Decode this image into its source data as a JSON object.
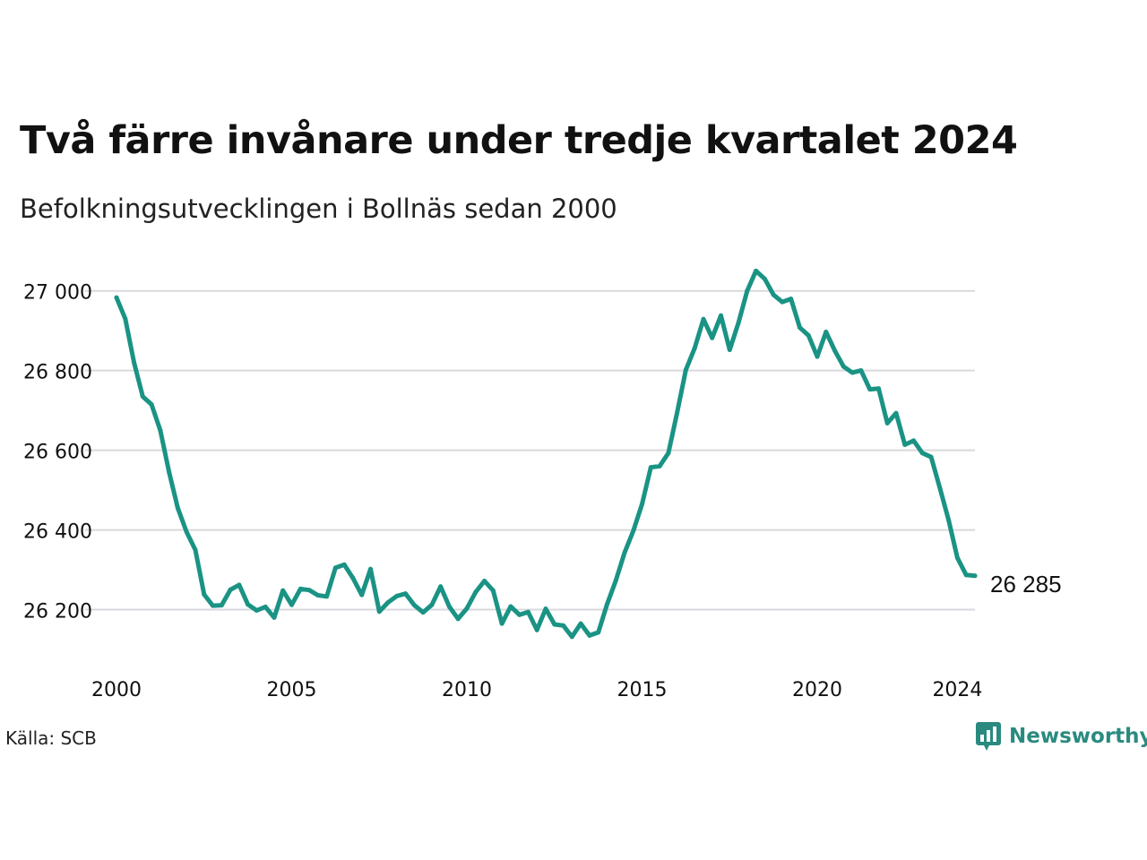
{
  "header": {
    "title": "Två färre invånare under tredje kvartalet 2024",
    "subtitle": "Befolkningsutvecklingen i Bollnäs sedan 2000"
  },
  "footer": {
    "source": "Källa: SCB",
    "brand": "Newsworthy",
    "brand_icon": "newsworthy-logo-icon"
  },
  "colors": {
    "line": "#1a9384",
    "grid": "#d9d9de",
    "brand": "#2a8a7f"
  },
  "chart_data": {
    "type": "line",
    "title": "Två färre invånare under tredje kvartalet 2024",
    "subtitle": "Befolkningsutvecklingen i Bollnäs sedan 2000",
    "xlabel": "",
    "ylabel": "",
    "xlim": [
      2000,
      2024.5
    ],
    "ylim": [
      26100,
      27060
    ],
    "x_ticks": [
      2000,
      2005,
      2010,
      2015,
      2020,
      2024
    ],
    "y_ticks": [
      26200,
      26400,
      26600,
      26800,
      27000
    ],
    "y_tick_labels": [
      "26 200",
      "26 400",
      "26 600",
      "26 800",
      "27 000"
    ],
    "grid": true,
    "last_value_label": "26 285",
    "series": [
      {
        "x_start": 2000.0,
        "x_step": 0.25,
        "values": [
          26983,
          26930,
          26820,
          26735,
          26715,
          26650,
          26545,
          26455,
          26395,
          26350,
          26238,
          26210,
          26211,
          26250,
          26262,
          26213,
          26198,
          26207,
          26180,
          26248,
          26212,
          26252,
          26249,
          26236,
          26233,
          26305,
          26313,
          26279,
          26237,
          26302,
          26195,
          26218,
          26234,
          26240,
          26211,
          26193,
          26212,
          26258,
          26207,
          26177,
          26203,
          26244,
          26272,
          26248,
          26165,
          26208,
          26187,
          26194,
          26149,
          26202,
          26163,
          26160,
          26132,
          26165,
          26135,
          26143,
          26213,
          26273,
          26343,
          26398,
          26465,
          26557,
          26560,
          26593,
          26694,
          26802,
          26856,
          26929,
          26882,
          26938,
          26852,
          26920,
          27000,
          27050,
          27030,
          26990,
          26972,
          26980,
          26908,
          26888,
          26835,
          26897,
          26850,
          26810,
          26795,
          26800,
          26753,
          26755,
          26668,
          26693,
          26614,
          26624,
          26593,
          26583,
          26505,
          26424,
          26330,
          26287,
          26285
        ]
      }
    ]
  }
}
